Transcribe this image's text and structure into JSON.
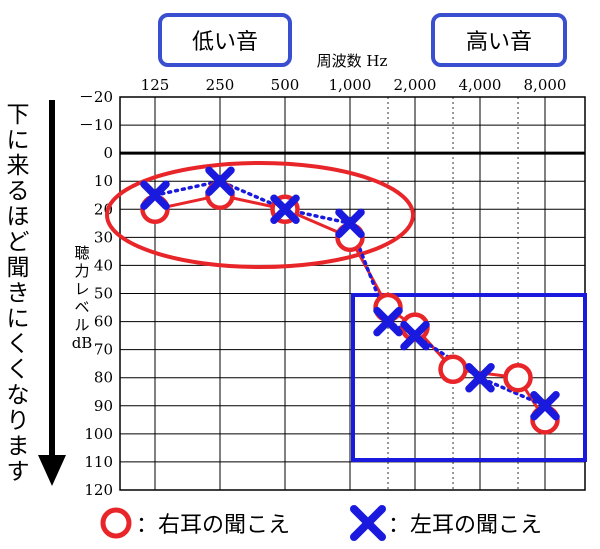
{
  "chart_data": {
    "type": "line",
    "title": "",
    "xlabel": "周波数 Hz",
    "ylabel_lines": [
      "聴",
      "力",
      "レ",
      "ベ",
      "ル",
      "dB"
    ],
    "x_ticks": [
      "125",
      "250",
      "500",
      "1,000",
      "2,000",
      "4,000",
      "8,000"
    ],
    "y_ticks": [
      "－20",
      "－10",
      "0",
      "10",
      "20",
      "30",
      "40",
      "50",
      "60",
      "70",
      "80",
      "90",
      "100",
      "110",
      "120"
    ],
    "y_tick_values": [
      -20,
      -10,
      0,
      10,
      20,
      30,
      40,
      50,
      60,
      70,
      80,
      90,
      100,
      110,
      120
    ],
    "ylim": [
      -20,
      120
    ],
    "y_inverted": true,
    "x_scale": "log2 (octave)",
    "grid": true,
    "series": [
      {
        "name": "右耳の聞こえ",
        "marker": "circle",
        "line": "solid",
        "color": "#e8262a",
        "x": [
          125,
          250,
          500,
          1000,
          1500,
          2000,
          3000,
          6000,
          8000
        ],
        "y": [
          20,
          15,
          20,
          30,
          55,
          62,
          77,
          80,
          95
        ]
      },
      {
        "name": "左耳の聞こえ",
        "marker": "cross",
        "line": "dotted",
        "color": "#1a1adf",
        "x": [
          125,
          250,
          500,
          1000,
          1500,
          2000,
          4000,
          8000
        ],
        "y": [
          15,
          10,
          20,
          25,
          60,
          65,
          80,
          90
        ]
      }
    ]
  },
  "labels": {
    "low_sound": "低い音",
    "high_sound": "高い音",
    "side_arrow_text": [
      "下",
      "に",
      "来",
      "る",
      "ほ",
      "ど",
      "聞",
      "き",
      "に",
      "く",
      "く",
      "な",
      "り",
      "ま",
      "す"
    ]
  },
  "legend": {
    "right_text": "：右耳の聞こえ",
    "left_text": "：左耳の聞こえ"
  },
  "colors": {
    "red": "#e8262a",
    "blue": "#1a1adf",
    "label_box_border": "#3a4fd0",
    "grid": "#000000"
  }
}
